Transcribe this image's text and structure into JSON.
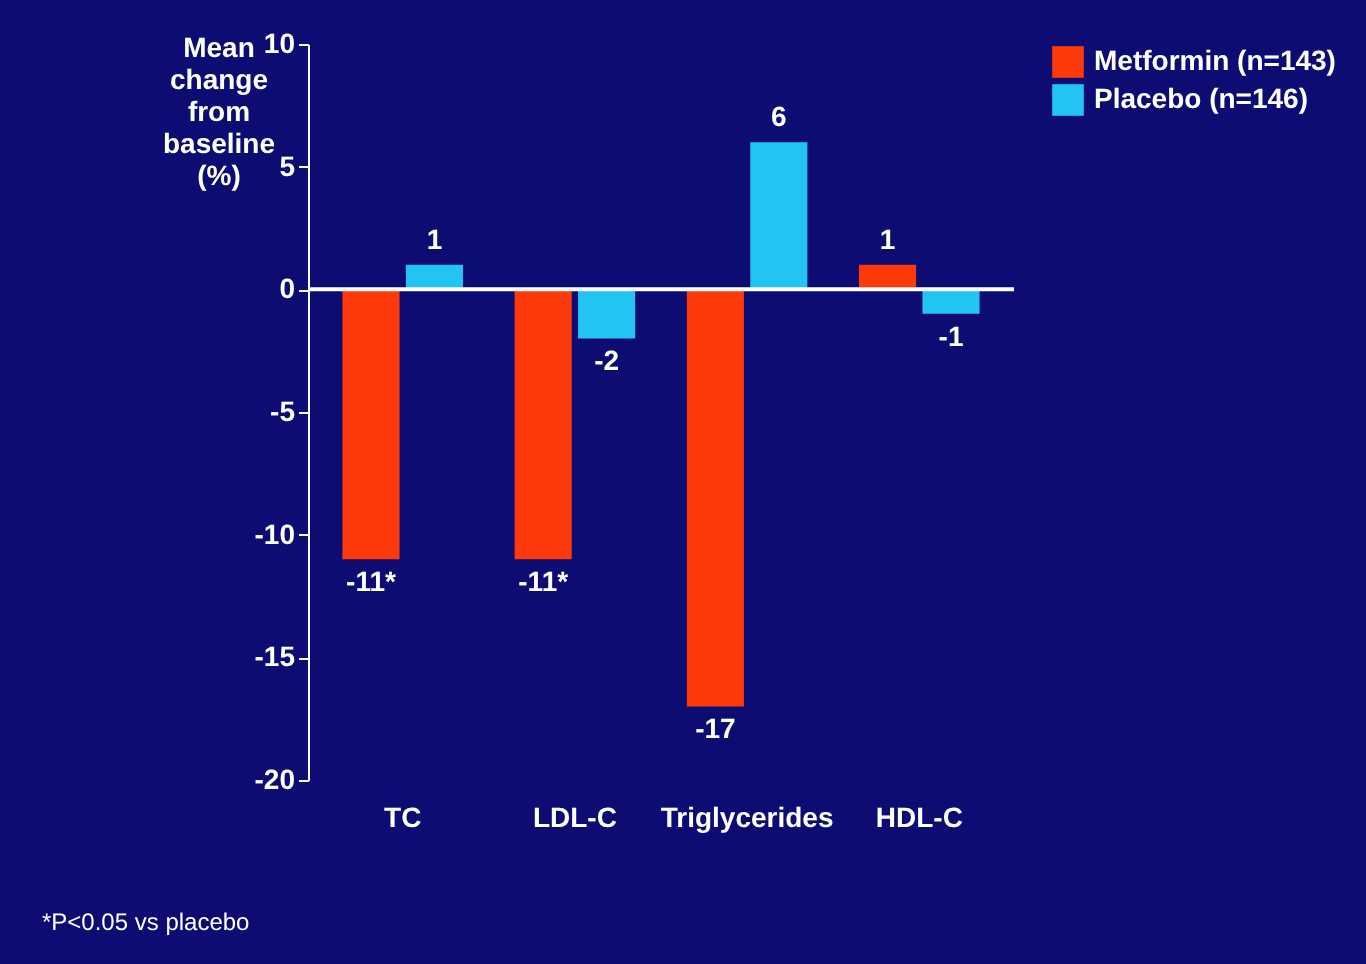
{
  "chart_data": {
    "type": "bar",
    "ylabel": "Mean change from baseline (%)",
    "categories": [
      "TC",
      "LDL-C",
      "Triglycerides",
      "HDL-C"
    ],
    "series": [
      {
        "name": "Metformin (n=143)",
        "color": "#ff3a0a",
        "values": [
          -11,
          -11,
          -17,
          1
        ],
        "value_labels": [
          "-11*",
          "-11*",
          "-17",
          "1"
        ]
      },
      {
        "name": "Placebo (n=146)",
        "color": "#22c4f4",
        "values": [
          1,
          -2,
          6,
          -1
        ],
        "value_labels": [
          "1",
          "-2",
          "6",
          "-1"
        ]
      }
    ],
    "ylim": [
      -20,
      10
    ],
    "yticks": [
      -20,
      -15,
      -10,
      -5,
      0,
      5,
      10
    ],
    "legend": "right",
    "annotations": [
      "*P<0.05 vs placebo"
    ]
  }
}
